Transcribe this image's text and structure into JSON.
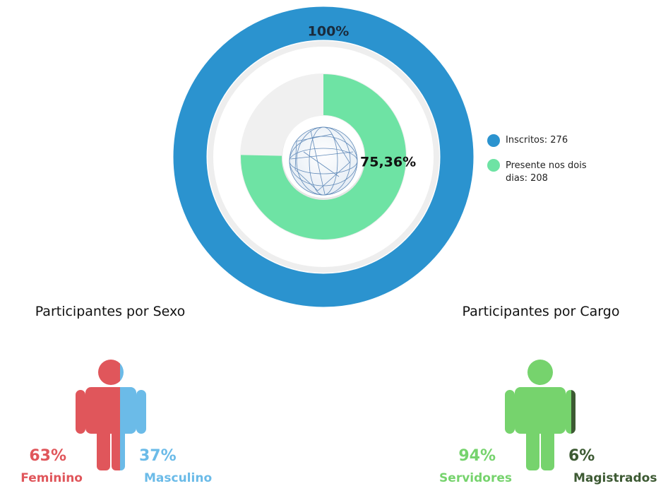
{
  "chart_data": [
    {
      "type": "radial",
      "ylim": [
        0,
        100
      ],
      "series": [
        {
          "name": "Inscritos: 276",
          "color": "#2b93cf",
          "values": [
            100
          ],
          "value_labels": [
            "100%"
          ]
        },
        {
          "name": "Presente nos dois dias: 208",
          "color": "#6ee3a4",
          "values": [
            75.36
          ],
          "value_labels": [
            "75,36%"
          ]
        }
      ]
    },
    {
      "type": "pictogram",
      "title": "Participantes por Sexo",
      "categories": [
        "Feminino",
        "Masculino"
      ],
      "values": [
        63,
        37
      ],
      "value_labels": [
        "63%",
        "37%"
      ],
      "colors": [
        "#e0565b",
        "#6bbbe8"
      ]
    },
    {
      "type": "pictogram",
      "title": "Participantes por Cargo",
      "categories": [
        "Servidores",
        "Magistrados"
      ],
      "values": [
        94,
        6
      ],
      "value_labels": [
        "94%",
        "6%"
      ],
      "colors": [
        "#76d36d",
        "#3d5a33"
      ]
    }
  ]
}
